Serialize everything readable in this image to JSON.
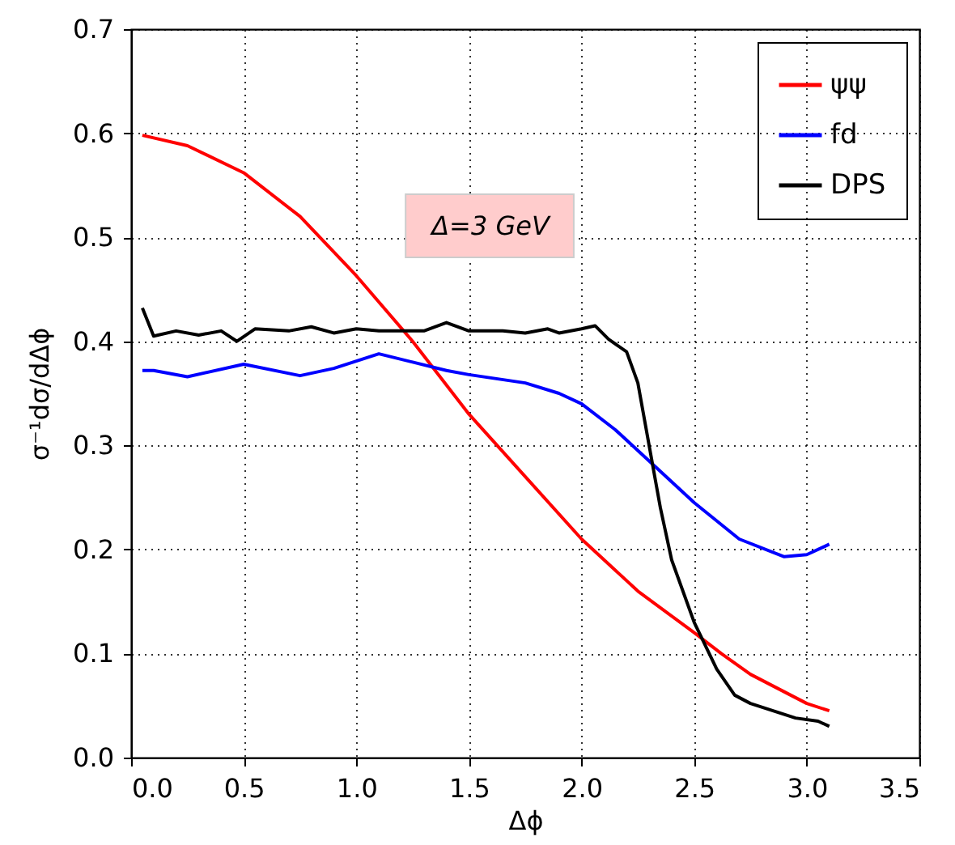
{
  "chart_data": {
    "type": "line",
    "xlabel": "Δϕ",
    "ylabel": "σ⁻¹dσ/dΔϕ",
    "annotations": [
      "Δ=3 GeV"
    ],
    "xlim": [
      0,
      3.5
    ],
    "xticks": [
      {
        "value": 0,
        "label": "0.0"
      },
      {
        "value": 0.5,
        "label": "0.5"
      },
      {
        "value": 1,
        "label": "1.0"
      },
      {
        "value": 1.5,
        "label": "1.5"
      },
      {
        "value": 2,
        "label": "2.0"
      },
      {
        "value": 2.5,
        "label": "2.5"
      },
      {
        "value": 3,
        "label": "3.0"
      },
      {
        "value": 3.5,
        "label": "3.5"
      }
    ],
    "ylim": [
      0,
      0.7
    ],
    "yticks": [
      {
        "value": 0,
        "label": "0.0"
      },
      {
        "value": 0.1,
        "label": "0.1"
      },
      {
        "value": 0.2,
        "label": "0.2"
      },
      {
        "value": 0.3,
        "label": "0.3"
      },
      {
        "value": 0.4,
        "label": "0.4"
      },
      {
        "value": 0.5,
        "label": "0.5"
      },
      {
        "value": 0.6,
        "label": "0.6"
      },
      {
        "value": 0.7,
        "label": "0.7"
      }
    ],
    "grid": true,
    "legend": "top right",
    "marker": "none",
    "line_style": "solid",
    "series": [
      {
        "name": "ψψ",
        "color": "#ff0000",
        "x": [
          0.05,
          0.25,
          0.5,
          0.75,
          1.0,
          1.25,
          1.5,
          1.75,
          2.0,
          2.25,
          2.5,
          2.62,
          2.75,
          3.0,
          3.1
        ],
        "values": [
          0.598,
          0.588,
          0.562,
          0.52,
          0.463,
          0.4,
          0.33,
          0.27,
          0.21,
          0.16,
          0.12,
          0.1,
          0.08,
          0.052,
          0.045
        ]
      },
      {
        "name": "fd",
        "color": "#0000ff",
        "x": [
          0.05,
          0.1,
          0.25,
          0.5,
          0.75,
          0.9,
          1.1,
          1.25,
          1.4,
          1.5,
          1.75,
          1.9,
          2.0,
          2.15,
          2.3,
          2.5,
          2.7,
          2.9,
          3.0,
          3.1
        ],
        "values": [
          0.372,
          0.372,
          0.366,
          0.378,
          0.367,
          0.374,
          0.388,
          0.38,
          0.372,
          0.368,
          0.36,
          0.35,
          0.34,
          0.315,
          0.285,
          0.245,
          0.21,
          0.193,
          0.195,
          0.205
        ]
      },
      {
        "name": "DPS",
        "color": "#000000",
        "x": [
          0.05,
          0.1,
          0.2,
          0.3,
          0.4,
          0.47,
          0.55,
          0.7,
          0.8,
          0.9,
          1.0,
          1.1,
          1.2,
          1.3,
          1.4,
          1.5,
          1.65,
          1.75,
          1.85,
          1.9,
          2.0,
          2.06,
          2.12,
          2.2,
          2.25,
          2.3,
          2.35,
          2.4,
          2.5,
          2.6,
          2.68,
          2.75,
          2.85,
          2.95,
          3.05,
          3.1
        ],
        "values": [
          0.432,
          0.405,
          0.41,
          0.406,
          0.41,
          0.4,
          0.412,
          0.41,
          0.414,
          0.408,
          0.412,
          0.41,
          0.41,
          0.41,
          0.418,
          0.41,
          0.41,
          0.408,
          0.412,
          0.408,
          0.412,
          0.415,
          0.402,
          0.39,
          0.36,
          0.3,
          0.24,
          0.19,
          0.13,
          0.085,
          0.06,
          0.052,
          0.045,
          0.038,
          0.035,
          0.03
        ]
      }
    ]
  }
}
